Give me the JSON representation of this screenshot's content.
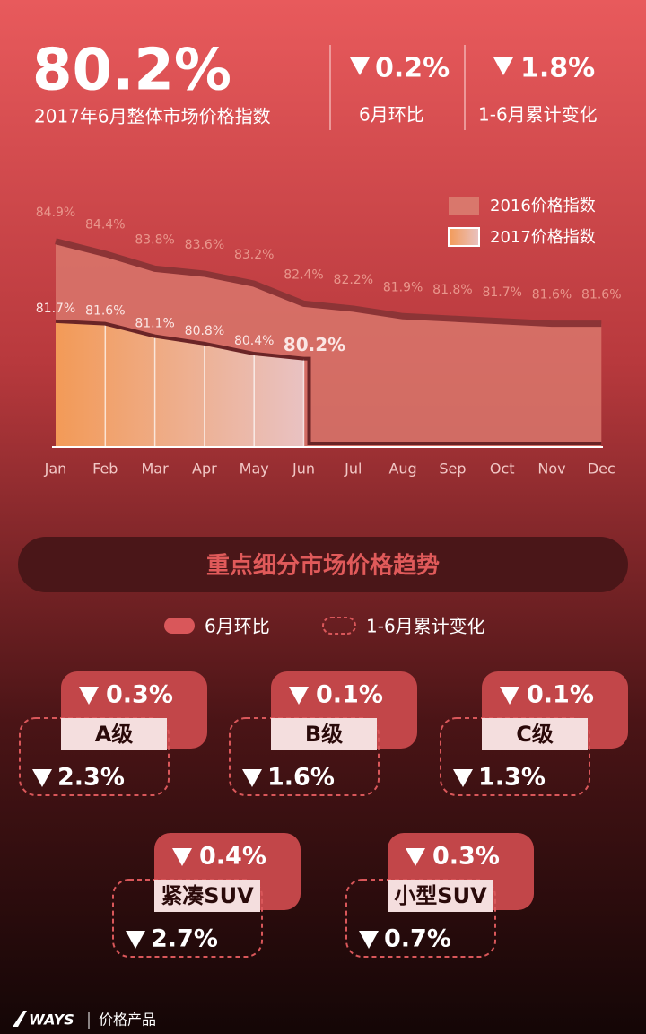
{
  "header": {
    "headline": "80.2%",
    "subtitle": "2017年6月整体市场价格指数",
    "kpis": [
      {
        "value": "0.2%",
        "label": "6月环比"
      },
      {
        "value": "1.8%",
        "label": "1-6月累计变化"
      }
    ]
  },
  "chart_data": {
    "type": "area",
    "categories": [
      "Jan",
      "Feb",
      "Mar",
      "Apr",
      "May",
      "Jun",
      "Jul",
      "Aug",
      "Sep",
      "Oct",
      "Nov",
      "Dec"
    ],
    "series": [
      {
        "name": "2016价格指数",
        "color": "#d9776c",
        "values": [
          84.9,
          84.4,
          83.8,
          83.6,
          83.2,
          82.4,
          82.2,
          81.9,
          81.8,
          81.7,
          81.6,
          81.6
        ],
        "value_labels": [
          "84.9%",
          "84.4%",
          "83.8%",
          "83.6%",
          "83.2%",
          "82.4%",
          "82.2%",
          "81.9%",
          "81.8%",
          "81.7%",
          "81.6%",
          "81.6%"
        ]
      },
      {
        "name": "2017价格指数",
        "color": "#f39a57",
        "values": [
          81.7,
          81.6,
          81.1,
          80.8,
          80.4,
          80.2,
          null,
          null,
          null,
          null,
          null,
          null
        ],
        "value_labels": [
          "81.7%",
          "81.6%",
          "81.1%",
          "80.8%",
          "80.4%",
          "80.2%",
          null,
          null,
          null,
          null,
          null,
          null
        ]
      }
    ],
    "ylim": [
      76.7,
      87.3
    ],
    "legend": "top-right"
  },
  "section": {
    "title": "重点细分市场价格趋势",
    "legend": [
      "6月环比",
      "1-6月累计变化"
    ]
  },
  "segments": [
    {
      "name": "A级",
      "mom": "0.3%",
      "cum": "2.3%"
    },
    {
      "name": "B级",
      "mom": "0.1%",
      "cum": "1.6%"
    },
    {
      "name": "C级",
      "mom": "0.1%",
      "cum": "1.3%"
    },
    {
      "name": "紧凑SUV",
      "mom": "0.4%",
      "cum": "2.7%"
    },
    {
      "name": "小型SUV",
      "mom": "0.3%",
      "cum": "0.7%"
    }
  ],
  "footer": {
    "brand": "WAYS",
    "product": "价格产品"
  }
}
